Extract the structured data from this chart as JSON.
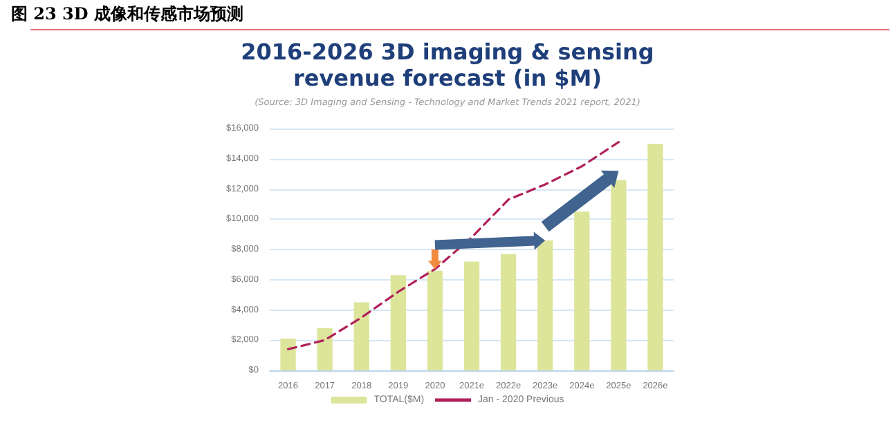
{
  "chart_data": {
    "type": "bar",
    "title": "图 23 3D 成像和传感市场预测",
    "subtitle": "2016-2026 3D imaging & sensing revenue forecast (in $M)",
    "annotations": [
      "(Source: 3D Imaging and Sensing - Technology and Market Trends 2021 report, 2021)"
    ],
    "categories": [
      "2016",
      "2017",
      "2018",
      "2019",
      "2020",
      "2021e",
      "2022e",
      "2023e",
      "2024e",
      "2025e",
      "2026e"
    ],
    "series": [
      {
        "name": "TOTAL($M)",
        "color": "#dde59b",
        "values": [
          2100,
          2800,
          4500,
          6300,
          6600,
          7200,
          7700,
          8600,
          10500,
          12600,
          15000
        ]
      },
      {
        "name": "Jan - 2020 Previous",
        "type": "line",
        "color": "#b0205a",
        "line_style": "dashed",
        "marker": "none",
        "values": [
          1400,
          2000,
          3500,
          5200,
          6700,
          8800,
          11300,
          12300,
          13500,
          15100,
          null
        ]
      }
    ],
    "ylim": [
      0,
      16000
    ],
    "yticks": [
      {
        "value": 0,
        "label": "$0"
      },
      {
        "value": 2000,
        "label": "$2,000"
      },
      {
        "value": 4000,
        "label": "$4,000"
      },
      {
        "value": 6000,
        "label": "$6,000"
      },
      {
        "value": 8000,
        "label": "$8,000"
      },
      {
        "value": 10000,
        "label": "$10,000"
      },
      {
        "value": 12000,
        "label": "$12,000"
      },
      {
        "value": 14000,
        "label": "$14,000"
      },
      {
        "value": 16000,
        "label": "$16,000"
      }
    ],
    "grid": "y",
    "legend": "bottom"
  }
}
